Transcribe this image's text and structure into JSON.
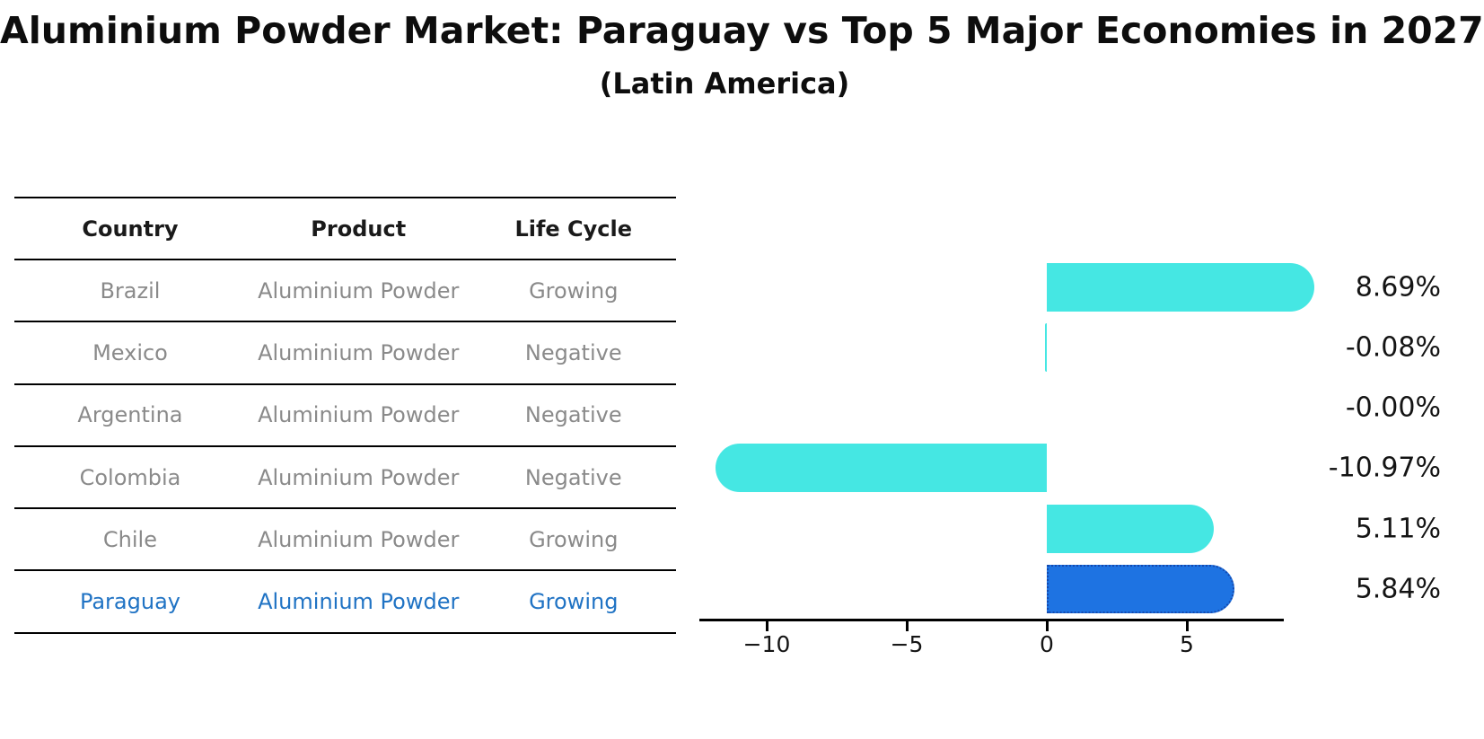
{
  "title": "Aluminium Powder Market: Paraguay vs Top 5 Major Economies in 2027",
  "subtitle": "(Latin America)",
  "table": {
    "headers": [
      "Country",
      "Product",
      "Life Cycle"
    ],
    "rows": [
      {
        "country": "Brazil",
        "product": "Aluminium Powder",
        "life_cycle": "Growing",
        "highlight": false
      },
      {
        "country": "Mexico",
        "product": "Aluminium Powder",
        "life_cycle": "Negative",
        "highlight": false
      },
      {
        "country": "Argentina",
        "product": "Aluminium Powder",
        "life_cycle": "Negative",
        "highlight": false
      },
      {
        "country": "Colombia",
        "product": "Aluminium Powder",
        "life_cycle": "Negative",
        "highlight": false
      },
      {
        "country": "Chile",
        "product": "Aluminium Powder",
        "life_cycle": "Growing",
        "highlight": false
      },
      {
        "country": "Paraguay",
        "product": "Aluminium Powder",
        "life_cycle": "Growing",
        "highlight": true
      }
    ]
  },
  "chart_data": {
    "type": "bar",
    "orientation": "horizontal",
    "title": "Aluminium Powder Market: Paraguay vs Top 5 Major Economies in 2027",
    "subtitle": "(Latin America)",
    "categories": [
      "Brazil",
      "Mexico",
      "Argentina",
      "Colombia",
      "Chile",
      "Paraguay"
    ],
    "values": [
      8.69,
      -0.08,
      0.0,
      -10.97,
      5.11,
      5.84
    ],
    "value_labels": [
      "8.69%",
      "-0.08%",
      "-0.00%",
      "-10.97%",
      "5.11%",
      "5.84%"
    ],
    "xticks": [
      -10,
      -5,
      0,
      5
    ],
    "xtick_labels": [
      "−10",
      "−5",
      "0",
      "5"
    ],
    "xlim": [
      -12.4,
      8.5
    ],
    "grid": false,
    "legend": false,
    "bar_color": "#45E7E3",
    "highlight_index": 5,
    "highlight_color": "#1E73E2",
    "highlight_border_color": "#1449AE",
    "highlight_text_color": "#2073C4",
    "axis_color": "#000000",
    "label_color": "#141414"
  }
}
